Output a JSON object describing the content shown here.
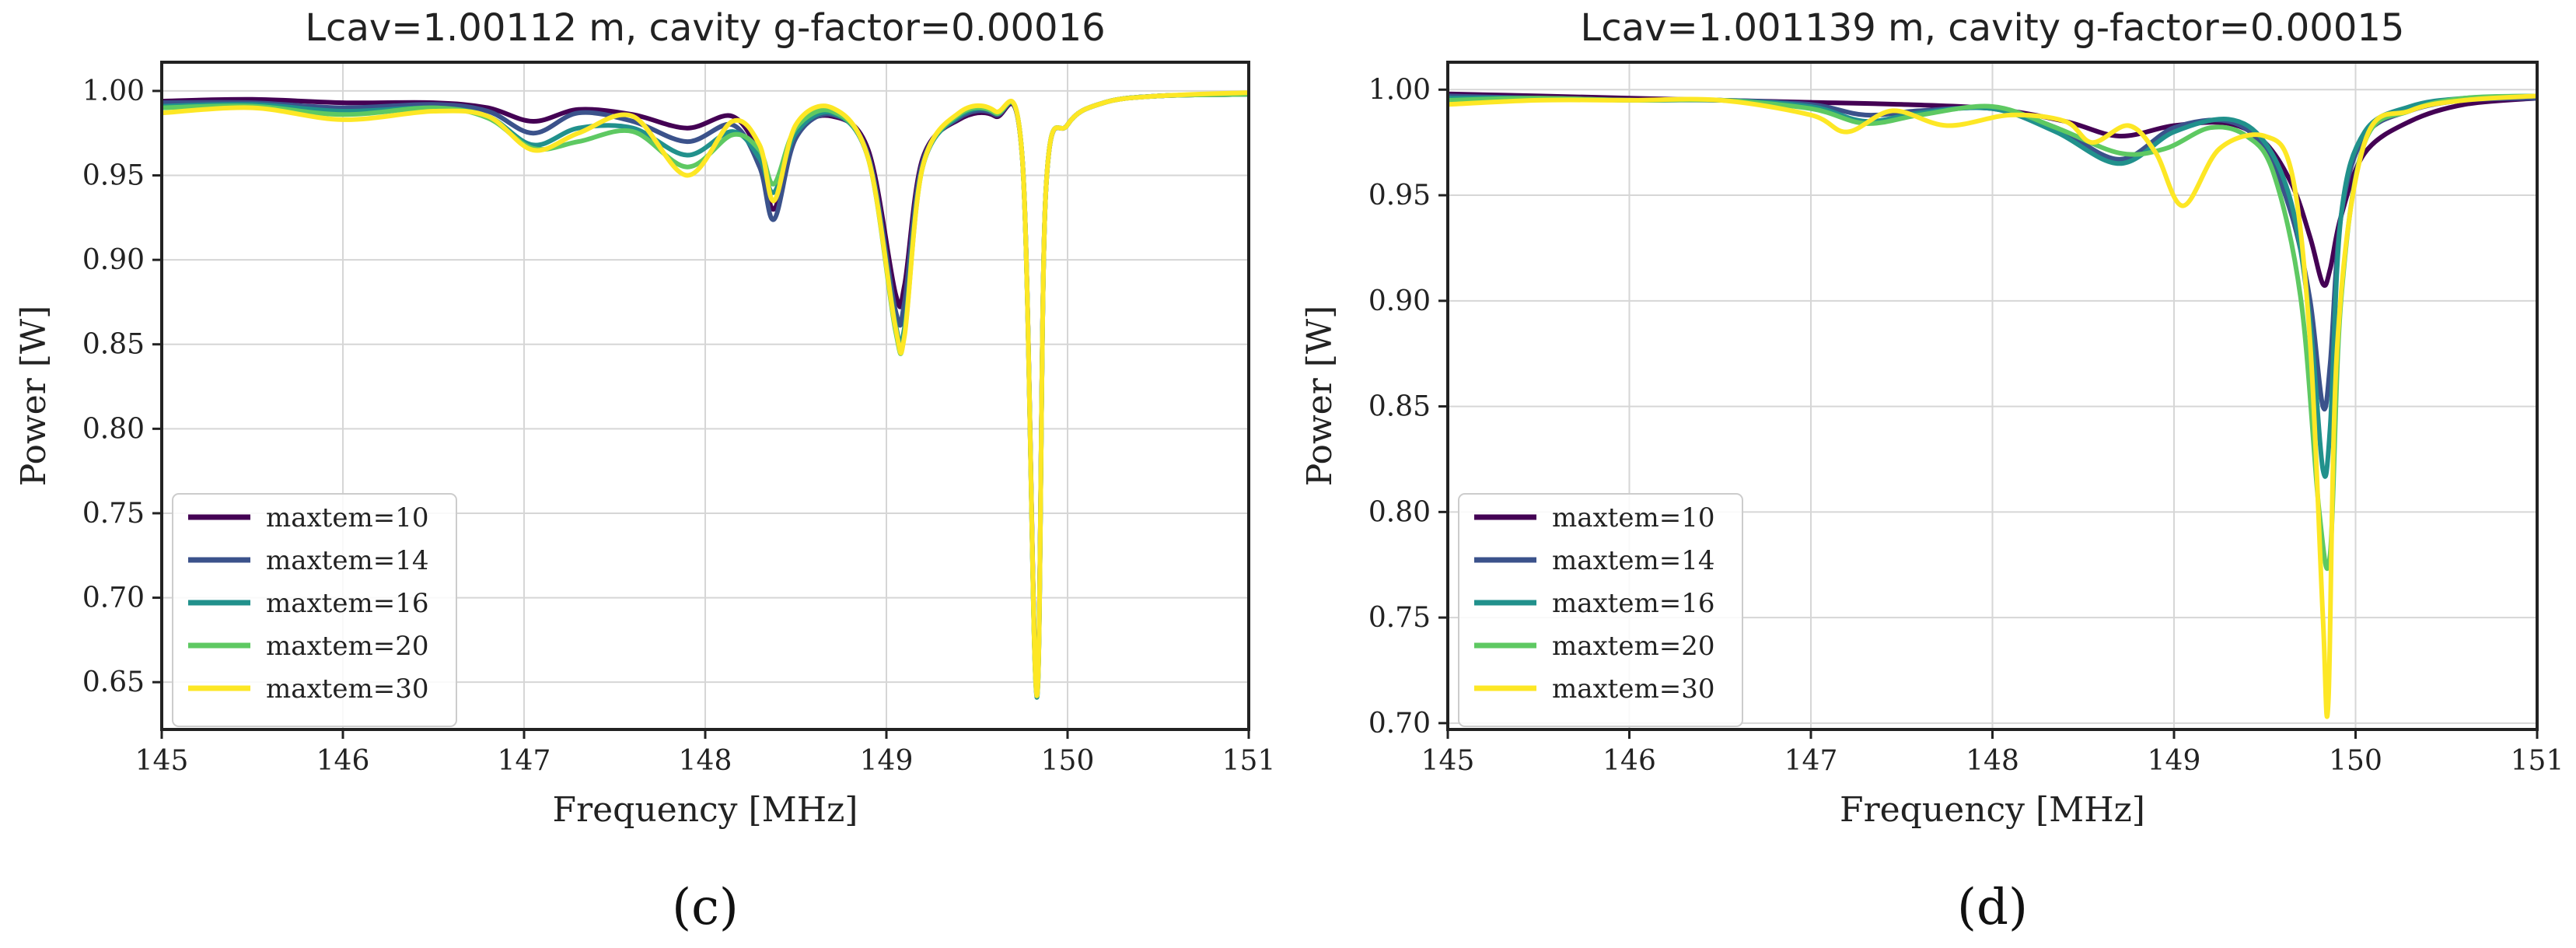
{
  "chart_data": [
    {
      "type": "line",
      "title": "Lcav=1.00112 m, cavity g-factor=0.00016",
      "xlabel": "Frequency [MHz]",
      "ylabel": "Power [W]",
      "xlim": [
        145,
        151
      ],
      "ylim": [
        0.622,
        1.017
      ],
      "xticks": [
        145,
        146,
        147,
        148,
        149,
        150,
        151
      ],
      "xtick_labels": [
        "145",
        "146",
        "147",
        "148",
        "149",
        "150",
        "151"
      ],
      "yticks": [
        0.65,
        0.7,
        0.75,
        0.8,
        0.85,
        0.9,
        0.95,
        1.0
      ],
      "ytick_labels": [
        "0.65",
        "0.70",
        "0.75",
        "0.80",
        "0.85",
        "0.90",
        "0.95",
        "1.00"
      ],
      "grid": true,
      "legend_position": "lower-left",
      "panel_label": "(c)",
      "series": [
        {
          "name": "maxtem=10",
          "color": "#440154",
          "x": [
            145,
            145.5,
            146,
            146.5,
            146.8,
            147.05,
            147.3,
            147.6,
            147.9,
            148.15,
            148.3,
            148.38,
            148.5,
            148.7,
            148.9,
            149.05,
            149.1,
            149.2,
            149.4,
            149.6,
            149.75,
            149.83,
            149.88,
            150,
            150.2,
            150.5,
            151
          ],
          "y": [
            0.994,
            0.995,
            0.993,
            0.993,
            0.99,
            0.982,
            0.989,
            0.986,
            0.978,
            0.985,
            0.962,
            0.93,
            0.975,
            0.985,
            0.965,
            0.88,
            0.885,
            0.96,
            0.983,
            0.985,
            0.96,
            0.645,
            0.94,
            0.98,
            0.993,
            0.997,
            0.998
          ]
        },
        {
          "name": "maxtem=14",
          "color": "#3b528b",
          "x": [
            145,
            145.5,
            146,
            146.5,
            146.8,
            147.05,
            147.3,
            147.6,
            147.9,
            148.15,
            148.3,
            148.38,
            148.5,
            148.7,
            148.9,
            149.05,
            149.1,
            149.2,
            149.4,
            149.6,
            149.75,
            149.83,
            149.88,
            150,
            150.2,
            150.5,
            151
          ],
          "y": [
            0.993,
            0.993,
            0.99,
            0.992,
            0.988,
            0.975,
            0.987,
            0.982,
            0.97,
            0.98,
            0.955,
            0.924,
            0.972,
            0.986,
            0.962,
            0.87,
            0.875,
            0.958,
            0.984,
            0.986,
            0.96,
            0.643,
            0.94,
            0.98,
            0.993,
            0.997,
            0.998
          ]
        },
        {
          "name": "maxtem=16",
          "color": "#21918c",
          "x": [
            145,
            145.5,
            146,
            146.5,
            146.8,
            147.05,
            147.3,
            147.6,
            147.9,
            148.15,
            148.3,
            148.38,
            148.5,
            148.7,
            148.9,
            149.05,
            149.1,
            149.2,
            149.4,
            149.6,
            149.75,
            149.83,
            149.88,
            150,
            150.2,
            150.5,
            151
          ],
          "y": [
            0.991,
            0.992,
            0.988,
            0.99,
            0.985,
            0.968,
            0.978,
            0.978,
            0.962,
            0.976,
            0.96,
            0.94,
            0.975,
            0.987,
            0.96,
            0.862,
            0.86,
            0.955,
            0.985,
            0.987,
            0.96,
            0.641,
            0.94,
            0.98,
            0.993,
            0.997,
            0.998
          ]
        },
        {
          "name": "maxtem=20",
          "color": "#5ec962",
          "x": [
            145,
            145.5,
            146,
            146.5,
            146.8,
            147.05,
            147.3,
            147.6,
            147.9,
            148.15,
            148.3,
            148.38,
            148.5,
            148.7,
            148.9,
            149.05,
            149.1,
            149.2,
            149.4,
            149.6,
            149.75,
            149.83,
            149.88,
            150,
            150.2,
            150.5,
            151
          ],
          "y": [
            0.99,
            0.991,
            0.986,
            0.99,
            0.984,
            0.966,
            0.97,
            0.976,
            0.955,
            0.974,
            0.965,
            0.945,
            0.978,
            0.988,
            0.96,
            0.858,
            0.856,
            0.955,
            0.986,
            0.987,
            0.96,
            0.642,
            0.94,
            0.98,
            0.993,
            0.997,
            0.998
          ]
        },
        {
          "name": "maxtem=30",
          "color": "#fde725",
          "x": [
            145,
            145.5,
            146,
            146.5,
            146.8,
            147.05,
            147.3,
            147.6,
            147.9,
            148.15,
            148.3,
            148.38,
            148.5,
            148.7,
            148.9,
            149.05,
            149.1,
            149.2,
            149.4,
            149.6,
            149.75,
            149.83,
            149.88,
            150,
            150.2,
            150.5,
            151
          ],
          "y": [
            0.987,
            0.99,
            0.983,
            0.988,
            0.985,
            0.965,
            0.975,
            0.985,
            0.95,
            0.982,
            0.968,
            0.935,
            0.98,
            0.99,
            0.96,
            0.86,
            0.855,
            0.955,
            0.987,
            0.988,
            0.96,
            0.642,
            0.94,
            0.98,
            0.993,
            0.997,
            0.999
          ]
        }
      ]
    },
    {
      "type": "line",
      "title": "Lcav=1.001139 m, cavity g-factor=0.00015",
      "xlabel": "Frequency [MHz]",
      "ylabel": "Power [W]",
      "xlim": [
        145,
        151
      ],
      "ylim": [
        0.697,
        1.013
      ],
      "xticks": [
        145,
        146,
        147,
        148,
        149,
        150,
        151
      ],
      "xtick_labels": [
        "145",
        "146",
        "147",
        "148",
        "149",
        "150",
        "151"
      ],
      "yticks": [
        0.7,
        0.75,
        0.8,
        0.85,
        0.9,
        0.95,
        1.0
      ],
      "ytick_labels": [
        "0.70",
        "0.75",
        "0.80",
        "0.85",
        "0.90",
        "0.95",
        "1.00"
      ],
      "grid": true,
      "legend_position": "lower-left",
      "panel_label": "(d)",
      "series": [
        {
          "name": "maxtem=10",
          "color": "#440154",
          "x": [
            145,
            145.5,
            146,
            146.5,
            147,
            147.5,
            148,
            148.4,
            148.7,
            149,
            149.3,
            149.5,
            149.65,
            149.75,
            149.82,
            149.86,
            149.92,
            150.05,
            150.3,
            150.6,
            151
          ],
          "y": [
            0.998,
            0.997,
            0.996,
            0.995,
            0.994,
            0.993,
            0.991,
            0.985,
            0.978,
            0.983,
            0.984,
            0.975,
            0.955,
            0.93,
            0.908,
            0.915,
            0.94,
            0.97,
            0.985,
            0.993,
            0.996
          ]
        },
        {
          "name": "maxtem=14",
          "color": "#3b528b",
          "x": [
            145,
            145.5,
            146,
            146.5,
            147,
            147.3,
            147.6,
            148,
            148.35,
            148.7,
            149,
            149.3,
            149.5,
            149.65,
            149.75,
            149.82,
            149.86,
            149.92,
            150.05,
            150.3,
            150.6,
            151
          ],
          "y": [
            0.997,
            0.996,
            0.995,
            0.995,
            0.993,
            0.988,
            0.99,
            0.991,
            0.982,
            0.967,
            0.982,
            0.985,
            0.972,
            0.94,
            0.9,
            0.85,
            0.87,
            0.94,
            0.978,
            0.99,
            0.995,
            0.996
          ]
        },
        {
          "name": "maxtem=16",
          "color": "#21918c",
          "x": [
            145,
            145.5,
            146,
            146.5,
            147,
            147.3,
            147.6,
            148,
            148.35,
            148.7,
            149,
            149.3,
            149.5,
            149.65,
            149.75,
            149.82,
            149.86,
            149.92,
            150.05,
            150.3,
            150.6,
            151
          ],
          "y": [
            0.996,
            0.996,
            0.995,
            0.995,
            0.992,
            0.985,
            0.989,
            0.991,
            0.98,
            0.965,
            0.98,
            0.986,
            0.975,
            0.945,
            0.89,
            0.82,
            0.84,
            0.94,
            0.98,
            0.992,
            0.996,
            0.997
          ]
        },
        {
          "name": "maxtem=20",
          "color": "#5ec962",
          "x": [
            145,
            145.5,
            146,
            146.5,
            147,
            147.3,
            147.6,
            148,
            148.35,
            148.7,
            148.95,
            149.2,
            149.4,
            149.55,
            149.7,
            149.8,
            149.86,
            149.92,
            150.05,
            150.3,
            150.6,
            151
          ],
          "y": [
            0.995,
            0.996,
            0.995,
            0.995,
            0.991,
            0.984,
            0.988,
            0.992,
            0.982,
            0.97,
            0.972,
            0.982,
            0.978,
            0.96,
            0.9,
            0.8,
            0.78,
            0.9,
            0.975,
            0.99,
            0.996,
            0.997
          ]
        },
        {
          "name": "maxtem=30",
          "color": "#fde725",
          "x": [
            145,
            145.5,
            146,
            146.5,
            147,
            147.2,
            147.45,
            147.75,
            148.1,
            148.4,
            148.55,
            148.75,
            148.9,
            149.05,
            149.25,
            149.5,
            149.65,
            149.75,
            149.82,
            149.85,
            149.9,
            150.05,
            150.3,
            150.6,
            151
          ],
          "y": [
            0.993,
            0.995,
            0.995,
            0.995,
            0.988,
            0.98,
            0.99,
            0.983,
            0.988,
            0.985,
            0.975,
            0.983,
            0.97,
            0.945,
            0.972,
            0.978,
            0.96,
            0.88,
            0.75,
            0.71,
            0.88,
            0.975,
            0.99,
            0.995,
            0.997
          ]
        }
      ]
    }
  ]
}
